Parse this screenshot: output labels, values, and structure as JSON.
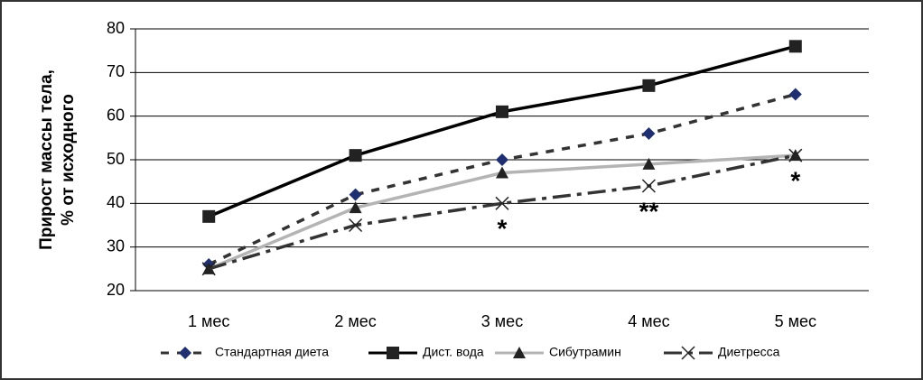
{
  "chart_data": {
    "type": "line",
    "ylabel": [
      "Прирост массы тела,",
      "% от исходного"
    ],
    "categories": [
      "1 мес",
      "2 мес",
      "3 мес",
      "4 мес",
      "5 мес"
    ],
    "series": [
      {
        "name": "Стандартная диета",
        "color": "#1f2f6f",
        "line_color": "#333333",
        "dash": "dashed",
        "marker": "diamond",
        "values": [
          26,
          42,
          50,
          56,
          65
        ]
      },
      {
        "name": "Дист. вода",
        "color": "#222222",
        "line_color": "#000000",
        "dash": "solid",
        "marker": "square",
        "values": [
          37,
          51,
          61,
          67,
          76
        ]
      },
      {
        "name": "Сибутрамин",
        "color": "#222222",
        "line_color": "#b4b4b4",
        "dash": "solid",
        "marker": "triangle",
        "values": [
          25,
          39,
          47,
          49,
          51
        ]
      },
      {
        "name": "Диетресса",
        "color": "#222222",
        "line_color": "#333333",
        "dash": "dashdot",
        "marker": "x",
        "values": [
          25,
          35,
          40,
          44,
          51
        ]
      }
    ],
    "annotations": [
      {
        "text": "*",
        "category": "3 мес"
      },
      {
        "text": "**",
        "category": "4 мес"
      },
      {
        "text": "*",
        "category": "5 мес"
      }
    ],
    "ylim": [
      20,
      80
    ],
    "yticks": [
      20,
      30,
      40,
      50,
      60,
      70,
      80
    ],
    "grid": true,
    "legend": "bottom"
  }
}
